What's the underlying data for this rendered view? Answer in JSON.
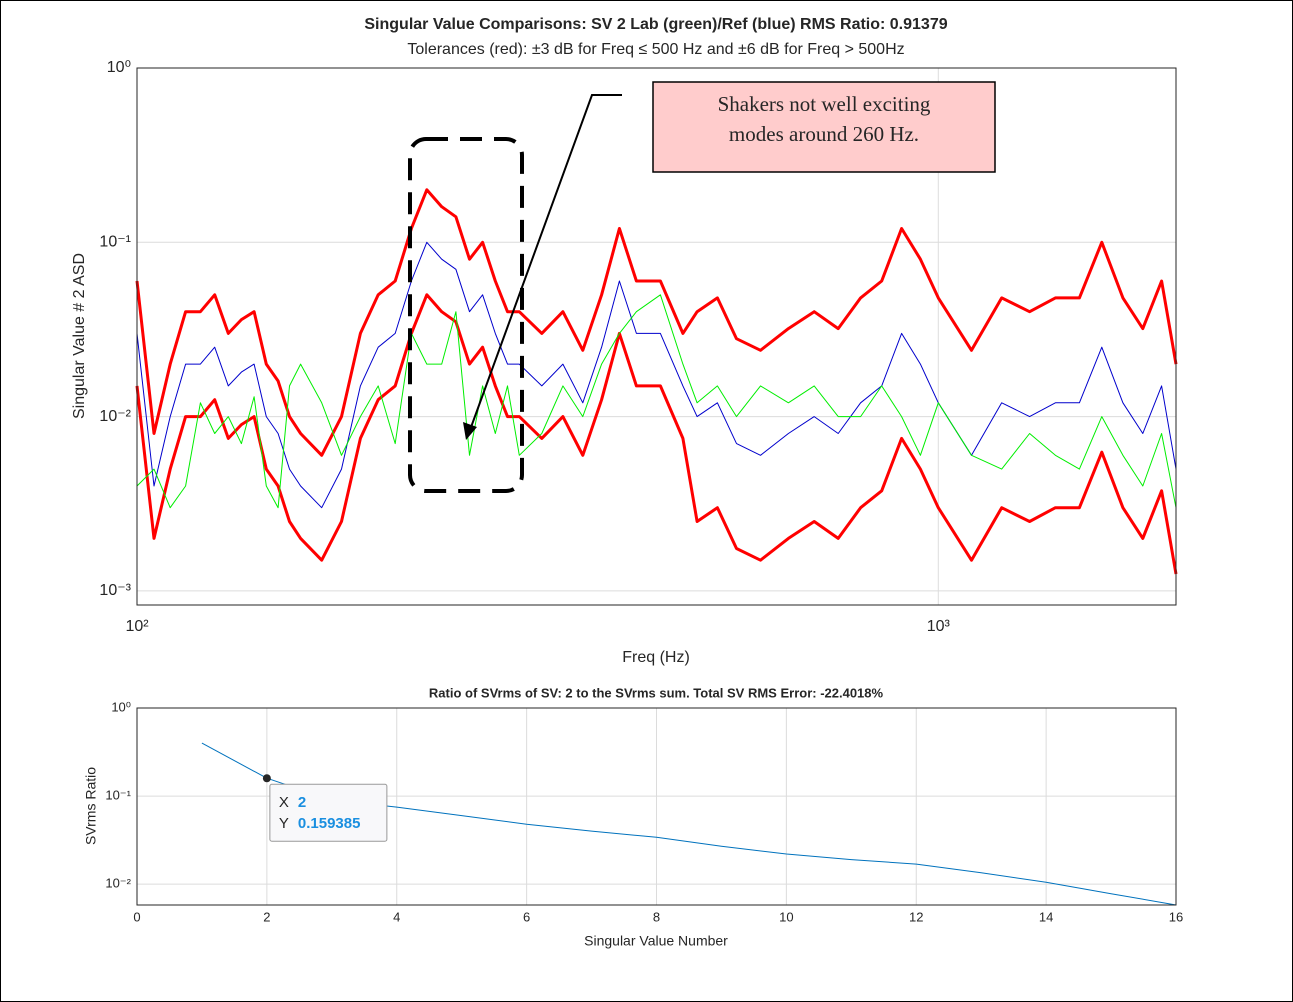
{
  "chart_data": [
    {
      "type": "line",
      "title": "Singular Value Comparisons:  SV 2 Lab (green)/Ref (blue) RMS Ratio: 0.91379",
      "subtitle": "Tolerances (red):  ±3 dB for Freq ≤ 500 Hz and ±6 dB for Freq > 500Hz",
      "xlabel": "Freq (Hz)",
      "ylabel": "Singular Value # 2 ASD",
      "x_log": true,
      "y_log": true,
      "grid": true,
      "xlim": [
        100,
        1980
      ],
      "ylim": [
        0.00083,
        1
      ],
      "xticks": [
        {
          "value": 100,
          "label": "10²"
        },
        {
          "value": 1000,
          "label": "10³"
        }
      ],
      "yticks": [
        {
          "value": 0.001,
          "label": "10⁻³"
        },
        {
          "value": 0.01,
          "label": "10⁻²"
        },
        {
          "value": 0.1,
          "label": "10⁻¹"
        },
        {
          "value": 1,
          "label": "10⁰"
        }
      ],
      "x": [
        100,
        105,
        110,
        115,
        120,
        125,
        130,
        135,
        140,
        145,
        150,
        155,
        160,
        170,
        180,
        190,
        200,
        210,
        220,
        230,
        240,
        250,
        260,
        270,
        280,
        290,
        300,
        320,
        340,
        360,
        380,
        400,
        420,
        450,
        480,
        500,
        530,
        560,
        600,
        650,
        700,
        750,
        800,
        850,
        900,
        950,
        1000,
        1100,
        1200,
        1300,
        1400,
        1500,
        1600,
        1700,
        1800,
        1900,
        1980
      ],
      "series": [
        {
          "color": "#ff0000",
          "width": 3,
          "values": [
            0.06,
            0.008,
            0.02,
            0.04,
            0.04,
            0.05,
            0.03,
            0.036,
            0.04,
            0.02,
            0.016,
            0.01,
            0.008,
            0.006,
            0.01,
            0.03,
            0.05,
            0.06,
            0.12,
            0.2,
            0.16,
            0.14,
            0.08,
            0.1,
            0.06,
            0.04,
            0.04,
            0.03,
            0.04,
            0.024,
            0.05,
            0.12,
            0.06,
            0.06,
            0.03,
            0.04,
            0.048,
            0.028,
            0.024,
            0.032,
            0.04,
            0.032,
            0.048,
            0.06,
            0.12,
            0.08,
            0.048,
            0.024,
            0.048,
            0.04,
            0.048,
            0.048,
            0.1,
            0.048,
            0.032,
            0.06,
            0.02
          ]
        },
        {
          "color": "#ff0000",
          "width": 3,
          "values": [
            0.015,
            0.002,
            0.005,
            0.01,
            0.01,
            0.0125,
            0.0075,
            0.009,
            0.01,
            0.005,
            0.004,
            0.0025,
            0.002,
            0.0015,
            0.0025,
            0.0075,
            0.0125,
            0.015,
            0.03,
            0.05,
            0.04,
            0.035,
            0.02,
            0.025,
            0.015,
            0.01,
            0.01,
            0.0075,
            0.01,
            0.006,
            0.0125,
            0.03,
            0.015,
            0.015,
            0.0075,
            0.0025,
            0.003,
            0.00175,
            0.0015,
            0.002,
            0.0025,
            0.002,
            0.003,
            0.00375,
            0.0075,
            0.005,
            0.003,
            0.0015,
            0.003,
            0.0025,
            0.003,
            0.003,
            0.00625,
            0.003,
            0.002,
            0.00375,
            0.00125
          ]
        },
        {
          "color": "#0000cc",
          "width": 1,
          "values": [
            0.03,
            0.004,
            0.01,
            0.02,
            0.02,
            0.025,
            0.015,
            0.018,
            0.02,
            0.01,
            0.008,
            0.005,
            0.004,
            0.003,
            0.005,
            0.015,
            0.025,
            0.03,
            0.06,
            0.1,
            0.08,
            0.07,
            0.04,
            0.05,
            0.03,
            0.02,
            0.02,
            0.015,
            0.02,
            0.012,
            0.025,
            0.06,
            0.03,
            0.03,
            0.015,
            0.01,
            0.012,
            0.007,
            0.006,
            0.008,
            0.01,
            0.008,
            0.012,
            0.015,
            0.03,
            0.02,
            0.012,
            0.006,
            0.012,
            0.01,
            0.012,
            0.012,
            0.025,
            0.012,
            0.008,
            0.015,
            0.005
          ]
        },
        {
          "color": "#00ee00",
          "width": 1,
          "values": [
            0.004,
            0.005,
            0.003,
            0.004,
            0.012,
            0.008,
            0.01,
            0.007,
            0.013,
            0.004,
            0.003,
            0.015,
            0.02,
            0.012,
            0.006,
            0.01,
            0.015,
            0.007,
            0.03,
            0.02,
            0.02,
            0.04,
            0.006,
            0.015,
            0.008,
            0.015,
            0.006,
            0.008,
            0.015,
            0.01,
            0.02,
            0.03,
            0.04,
            0.05,
            0.02,
            0.012,
            0.015,
            0.01,
            0.015,
            0.012,
            0.015,
            0.01,
            0.01,
            0.015,
            0.01,
            0.006,
            0.012,
            0.006,
            0.005,
            0.008,
            0.006,
            0.005,
            0.01,
            0.006,
            0.004,
            0.008,
            0.003
          ]
        }
      ],
      "annotation": [
        "Shakers not well exciting",
        "modes around 260 Hz."
      ]
    },
    {
      "type": "line",
      "title": "Ratio of SVrms of SV: 2 to the SVrms sum.     Total SV RMS Error: -22.4018%",
      "xlabel": "Singular Value Number",
      "ylabel": "SVrms Ratio",
      "x_log": false,
      "y_log": true,
      "grid": true,
      "xlim": [
        0,
        16
      ],
      "ylim": [
        0.0058,
        1
      ],
      "xticks": [
        0,
        2,
        4,
        6,
        8,
        10,
        12,
        14,
        16
      ],
      "yticks": [
        {
          "value": 0.01,
          "label": "10⁻²"
        },
        {
          "value": 0.1,
          "label": "10⁻¹"
        },
        {
          "value": 1,
          "label": "10⁰"
        }
      ],
      "x": [
        1,
        2,
        3,
        4,
        5,
        6,
        7,
        8,
        9,
        10,
        11,
        12,
        13,
        14,
        15,
        16
      ],
      "series": [
        {
          "color": "#0072bd",
          "width": 1,
          "values": [
            0.4,
            0.159385,
            0.09,
            0.075,
            0.06,
            0.048,
            0.04,
            0.034,
            0.027,
            0.022,
            0.019,
            0.0169,
            0.0135,
            0.0105,
            0.0078,
            0.0058
          ]
        }
      ],
      "datatip": {
        "x_name": "X",
        "y_name": "Y",
        "x": 2,
        "y": 0.159385
      }
    }
  ]
}
